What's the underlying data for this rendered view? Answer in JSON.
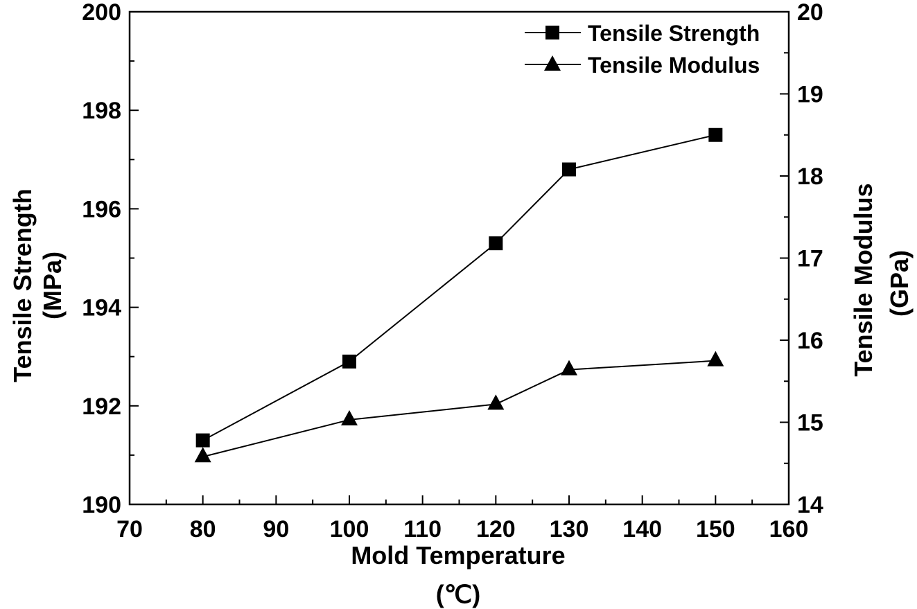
{
  "chart_data": {
    "type": "line",
    "xlabel": "Mold Temperature",
    "xlabel_unit": "(℃)",
    "ylabel_left": "Tensile Strength",
    "ylabel_left_unit": "(MPa)",
    "ylabel_right": "Tensile Modulus",
    "ylabel_right_unit": "(GPa)",
    "xlim": [
      70,
      160
    ],
    "ylim_left": [
      190,
      200
    ],
    "ylim_right": [
      14,
      20
    ],
    "x_ticks": [
      70,
      80,
      90,
      100,
      110,
      120,
      130,
      140,
      150,
      160
    ],
    "y_left_ticks": [
      190,
      192,
      194,
      196,
      198,
      200
    ],
    "y_right_ticks": [
      14,
      15,
      16,
      17,
      18,
      19,
      20
    ],
    "legend_position": "top-right",
    "series": [
      {
        "name": "Tensile Strength",
        "axis": "left",
        "marker": "square",
        "x": [
          80,
          100,
          120,
          130,
          150
        ],
        "values": [
          191.3,
          192.9,
          195.3,
          196.8,
          197.5
        ]
      },
      {
        "name": "Tensile Modulus",
        "axis": "right",
        "marker": "triangle",
        "x": [
          80,
          100,
          120,
          130,
          150
        ],
        "values": [
          14.58,
          15.03,
          15.22,
          15.64,
          15.75
        ]
      }
    ]
  }
}
